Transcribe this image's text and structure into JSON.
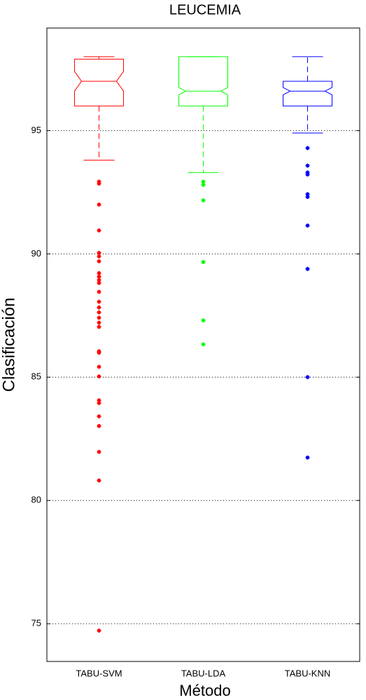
{
  "chart_data": {
    "type": "box",
    "title": "LEUCEMIA",
    "x_label": "Método",
    "y_label": "Clasificación",
    "categories": [
      "TABU-SVM",
      "TABU-LDA",
      "TABU-KNN"
    ],
    "boxes": [
      {
        "color": "#ff0000",
        "whisker_low": 93.8,
        "q1": 96.0,
        "notch_low": 96.6,
        "median": 97.0,
        "notch_high": 97.4,
        "q3": 97.9,
        "whisker_high": 98.0,
        "outliers": [
          92.93,
          92.85,
          92.0,
          90.95,
          90.04,
          89.9,
          89.7,
          89.22,
          89.08,
          88.94,
          88.82,
          88.46,
          88.06,
          87.83,
          87.63,
          87.41,
          87.21,
          87.04,
          86.05,
          85.99,
          85.42,
          85.03,
          84.06,
          83.95,
          83.41,
          83.02,
          81.97,
          80.81,
          74.72
        ]
      },
      {
        "color": "#00ff00",
        "whisker_low": 93.3,
        "q1": 96.0,
        "notch_low": 96.45,
        "median": 96.6,
        "notch_high": 96.75,
        "q3": 98.0,
        "whisker_high": 98.0,
        "outliers": [
          92.93,
          92.8,
          92.17,
          89.67,
          87.3,
          86.33
        ]
      },
      {
        "color": "#0000ff",
        "whisker_low": 94.9,
        "q1": 96.0,
        "notch_low": 96.45,
        "median": 96.6,
        "notch_high": 96.75,
        "q3": 97.0,
        "whisker_high": 98.0,
        "outliers": [
          94.29,
          93.58,
          93.3,
          93.22,
          92.42,
          92.31,
          91.15,
          89.39,
          85.0,
          81.74
        ]
      }
    ],
    "ylim": [
      73.47,
      99.16
    ],
    "yticks": [
      75,
      80,
      85,
      90,
      95
    ],
    "grid": true
  }
}
